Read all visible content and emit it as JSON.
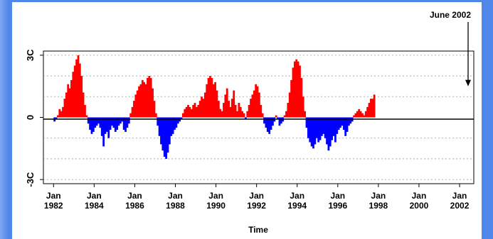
{
  "chart_data": {
    "type": "bar",
    "title": "",
    "xlabel": "Time",
    "ylabel": "",
    "ylim": [
      -3.2,
      3.2
    ],
    "xlim": [
      1981.5,
      2002.7
    ],
    "y_tick_labels": [
      {
        "value": 3,
        "label": "3C"
      },
      {
        "value": 0,
        "label": "0"
      },
      {
        "value": -3,
        "label": "-3C"
      }
    ],
    "y_gridlines": [
      3,
      2,
      1,
      -1,
      -2,
      -3
    ],
    "x_ticks": [
      {
        "year": 1982,
        "month": "Jan",
        "yr": "1982"
      },
      {
        "year": 1984,
        "month": "Jan",
        "yr": "1984"
      },
      {
        "year": 1986,
        "month": "Jan",
        "yr": "1986"
      },
      {
        "year": 1988,
        "month": "Jan",
        "yr": "1988"
      },
      {
        "year": 1990,
        "month": "Jan",
        "yr": "1990"
      },
      {
        "year": 1992,
        "month": "Jan",
        "yr": "1992"
      },
      {
        "year": 1994,
        "month": "Jan",
        "yr": "1994"
      },
      {
        "year": 1996,
        "month": "Jan",
        "yr": "1996"
      },
      {
        "year": 1998,
        "month": "Jan",
        "yr": "1998"
      },
      {
        "year": 2000,
        "month": "Jan",
        "yr": "2000"
      },
      {
        "year": 2002,
        "month": "Jan",
        "yr": "2002"
      }
    ],
    "grid": true,
    "positive_color": "#ff0000",
    "negative_color": "#0000ff",
    "annotation": {
      "text": "June 2002",
      "x": 2002.42,
      "y": 1.5
    },
    "series": [
      {
        "x_start": 1982.0,
        "x_step": 0.08333,
        "values": [
          -0.2,
          -0.1,
          0.1,
          0.4,
          0.3,
          0.5,
          0.9,
          1.2,
          1.6,
          1.4,
          1.8,
          2.2,
          2.5,
          2.8,
          3.0,
          2.6,
          2.0,
          1.2,
          0.6,
          0.1,
          -0.3,
          -0.6,
          -0.8,
          -0.7,
          -0.5,
          -0.4,
          -0.3,
          -0.5,
          -0.9,
          -1.4,
          -0.8,
          -0.7,
          -1.0,
          -0.6,
          -0.4,
          -0.5,
          -0.7,
          -0.6,
          -0.4,
          -0.3,
          -0.2,
          -0.6,
          -0.7,
          -0.5,
          -0.3,
          0.2,
          0.5,
          0.8,
          1.1,
          1.3,
          1.5,
          1.6,
          1.8,
          1.7,
          1.6,
          1.9,
          2.0,
          1.9,
          1.4,
          0.8,
          0.2,
          -0.4,
          -0.9,
          -1.3,
          -1.6,
          -1.9,
          -2.0,
          -1.7,
          -1.3,
          -0.9,
          -0.8,
          -0.6,
          -0.5,
          -0.3,
          -0.2,
          -0.1,
          0.2,
          0.4,
          0.5,
          0.6,
          0.5,
          0.4,
          0.6,
          0.7,
          0.5,
          0.6,
          0.8,
          1.0,
          0.9,
          1.2,
          1.6,
          1.9,
          2.0,
          1.9,
          1.6,
          1.7,
          1.3,
          0.8,
          0.4,
          0.3,
          0.7,
          1.1,
          1.4,
          0.8,
          0.5,
          0.9,
          1.3,
          0.6,
          0.3,
          0.7,
          0.5,
          0.3,
          0.2,
          -0.1,
          0.3,
          0.6,
          0.9,
          1.1,
          1.3,
          1.6,
          1.5,
          1.2,
          0.6,
          0.2,
          -0.3,
          -0.5,
          -0.7,
          -0.8,
          -0.6,
          -0.4,
          -0.2,
          0.1,
          -0.1,
          -0.4,
          -0.3,
          -0.2,
          0.1,
          0.3,
          0.7,
          1.2,
          1.8,
          2.4,
          2.7,
          2.8,
          2.7,
          2.5,
          1.9,
          1.0,
          0.3,
          -0.5,
          -1.0,
          -1.2,
          -1.4,
          -1.5,
          -1.3,
          -1.0,
          -1.2,
          -1.1,
          -0.9,
          -0.8,
          -1.0,
          -1.3,
          -1.6,
          -1.4,
          -1.1,
          -0.9,
          -1.2,
          -0.8,
          -0.6,
          -0.5,
          -0.4,
          -0.6,
          -0.9,
          -0.7,
          -0.4,
          -0.3,
          -0.2,
          0.1,
          0.2,
          0.3,
          0.4,
          0.3,
          0.2,
          0.1,
          0.3,
          0.5,
          0.7,
          0.9,
          0.9,
          1.1
        ]
      }
    ]
  }
}
